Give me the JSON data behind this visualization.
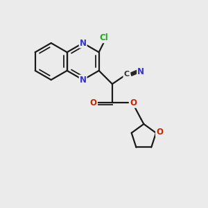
{
  "background_color": "#ebebeb",
  "bond_color": "#1a1a1a",
  "nitrogen_color": "#3333cc",
  "oxygen_color": "#cc2200",
  "chlorine_color": "#22aa22",
  "carbon_color": "#333333",
  "figsize": [
    3.0,
    3.0
  ],
  "dpi": 100,
  "xlim": [
    0.3,
    9.0
  ],
  "ylim": [
    0.5,
    9.5
  ]
}
